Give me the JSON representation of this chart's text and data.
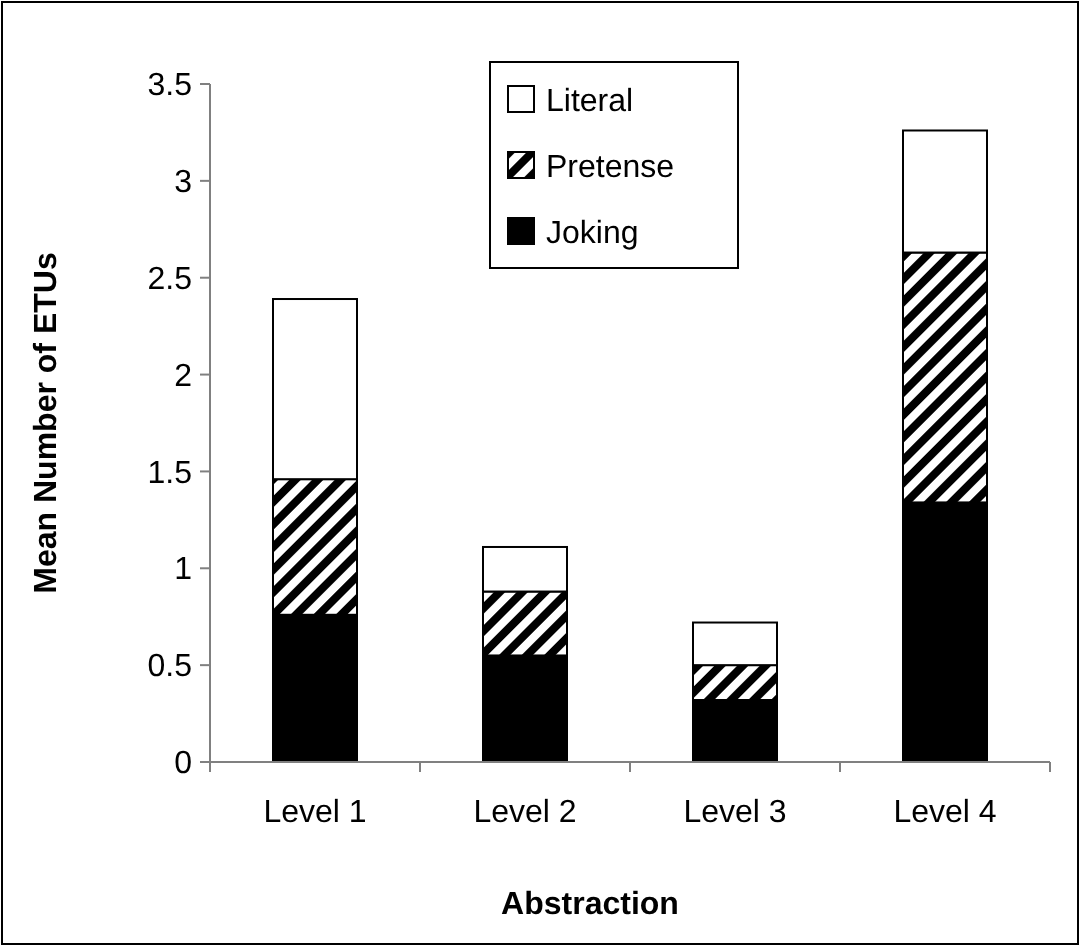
{
  "chart_data": {
    "type": "bar",
    "stacked": true,
    "xlabel": "Abstraction",
    "ylabel": "Mean Number of ETUs",
    "categories": [
      "Level 1",
      "Level 2",
      "Level 3",
      "Level 4"
    ],
    "series": [
      {
        "name": "Joking",
        "color": "#000000",
        "values": [
          0.76,
          0.55,
          0.32,
          1.34
        ]
      },
      {
        "name": "Pretense",
        "color": "#000000",
        "values": [
          0.7,
          0.33,
          0.18,
          1.29
        ]
      },
      {
        "name": "Literal",
        "color": "#ffffff",
        "values": [
          0.93,
          0.23,
          0.22,
          0.63
        ]
      }
    ],
    "ylim": [
      0,
      3.5
    ],
    "yticks": [
      0,
      0.5,
      1,
      1.5,
      2,
      2.5,
      3,
      3.5
    ],
    "grid": false,
    "legend": "top"
  }
}
